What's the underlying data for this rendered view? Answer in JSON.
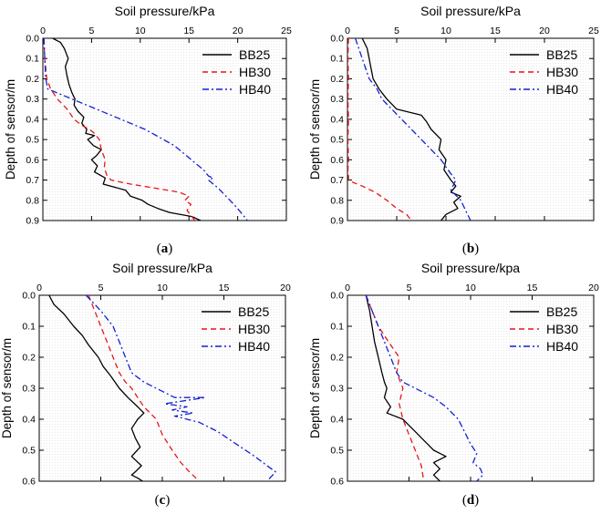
{
  "colors": {
    "BB25": "#000000",
    "HB30": "#e8141c",
    "HB40": "#1420d2"
  },
  "chart_data": [
    {
      "type": "line",
      "panel_label": "a",
      "title": "",
      "xlabel": "Soil pressure/kPa",
      "ylabel": "Depth of sensor/m",
      "xlim": [
        0,
        25
      ],
      "ylim": [
        0,
        0.9
      ],
      "x_ticks": [
        "0",
        "5",
        "10",
        "15",
        "20",
        "25"
      ],
      "y_ticks": [
        "0.0",
        "0.1",
        "0.2",
        "0.3",
        "0.4",
        "0.5",
        "0.6",
        "0.7",
        "0.8",
        "0.9"
      ],
      "legend_position": "top-right",
      "series": [
        {
          "name": "BB25",
          "style": "solid",
          "x": [
            1.0,
            1.8,
            2.2,
            2.6,
            2.3,
            2.5,
            2.7,
            3.0,
            3.3,
            3.2,
            3.6,
            4.2,
            4.0,
            4.5,
            4.4,
            5.3,
            4.6,
            5.2,
            6.0,
            5.5,
            5.0,
            5.6,
            5.3,
            6.4,
            6.2,
            8.5,
            9.0,
            10.2,
            10.8,
            11.8,
            13.0,
            15.3,
            16.2
          ],
          "y": [
            0.0,
            0.02,
            0.05,
            0.1,
            0.14,
            0.19,
            0.23,
            0.27,
            0.3,
            0.33,
            0.36,
            0.39,
            0.42,
            0.45,
            0.47,
            0.48,
            0.5,
            0.53,
            0.55,
            0.58,
            0.6,
            0.63,
            0.66,
            0.69,
            0.72,
            0.75,
            0.78,
            0.8,
            0.82,
            0.84,
            0.86,
            0.88,
            0.9
          ]
        },
        {
          "name": "HB30",
          "style": "dashed",
          "x": [
            0.1,
            0.2,
            0.4,
            0.8,
            1.5,
            2.5,
            3.2,
            4.0,
            4.8,
            5.3,
            5.8,
            6.0,
            6.4,
            6.3,
            6.6,
            7.0,
            9.0,
            11.5,
            14.0,
            15.0,
            14.6,
            15.2,
            14.8,
            15.3,
            15.6
          ],
          "y": [
            0.0,
            0.1,
            0.2,
            0.25,
            0.3,
            0.35,
            0.4,
            0.43,
            0.45,
            0.47,
            0.5,
            0.55,
            0.6,
            0.64,
            0.68,
            0.7,
            0.72,
            0.74,
            0.76,
            0.78,
            0.8,
            0.82,
            0.85,
            0.88,
            0.9
          ]
        },
        {
          "name": "HB40",
          "style": "dash-dot",
          "x": [
            0.1,
            0.2,
            0.3,
            0.5,
            1.5,
            3.0,
            4.5,
            6.5,
            8.5,
            10.5,
            12.0,
            13.5,
            14.5,
            15.5,
            16.5,
            17.0,
            17.5,
            17.0,
            18.0,
            18.8,
            19.8,
            20.5,
            21.0
          ],
          "y": [
            0.0,
            0.1,
            0.2,
            0.25,
            0.27,
            0.3,
            0.33,
            0.37,
            0.41,
            0.45,
            0.49,
            0.53,
            0.57,
            0.61,
            0.65,
            0.68,
            0.69,
            0.7,
            0.74,
            0.78,
            0.83,
            0.87,
            0.9
          ]
        }
      ]
    },
    {
      "type": "line",
      "panel_label": "b",
      "title": "",
      "xlabel": "Soil pressure/kPa",
      "ylabel": "Depth of sensor/m",
      "xlim": [
        0,
        25
      ],
      "ylim": [
        0,
        0.9
      ],
      "x_ticks": [
        "0",
        "5",
        "10",
        "15",
        "20",
        "25"
      ],
      "y_ticks": [
        "0.0",
        "0.1",
        "0.2",
        "0.3",
        "0.4",
        "0.5",
        "0.6",
        "0.7",
        "0.8",
        "0.9"
      ],
      "legend_position": "top-right",
      "series": [
        {
          "name": "BB25",
          "style": "solid",
          "x": [
            1.5,
            2.0,
            2.2,
            2.4,
            2.6,
            3.2,
            4.0,
            5.0,
            7.5,
            8.0,
            8.5,
            9.5,
            9.3,
            10.0,
            9.8,
            10.5,
            11.0,
            10.5,
            11.5,
            10.8,
            11.2,
            10.0,
            9.5
          ],
          "y": [
            0.0,
            0.05,
            0.1,
            0.15,
            0.2,
            0.25,
            0.3,
            0.35,
            0.38,
            0.41,
            0.45,
            0.5,
            0.55,
            0.6,
            0.65,
            0.7,
            0.73,
            0.76,
            0.78,
            0.81,
            0.84,
            0.87,
            0.9
          ]
        },
        {
          "name": "HB30",
          "style": "dashed",
          "x": [
            0.1,
            0.05,
            0.1,
            0.05,
            0.1,
            0.05,
            0.1,
            0.05,
            0.1,
            0.1,
            0.5,
            1.5,
            2.8,
            4.0,
            5.0,
            6.0,
            6.5
          ],
          "y": [
            0.0,
            0.1,
            0.2,
            0.3,
            0.4,
            0.5,
            0.6,
            0.65,
            0.68,
            0.7,
            0.71,
            0.73,
            0.76,
            0.8,
            0.84,
            0.87,
            0.9
          ]
        },
        {
          "name": "HB40",
          "style": "dash-dot",
          "x": [
            0.8,
            1.5,
            2.2,
            3.0,
            3.5,
            4.5,
            5.5,
            6.5,
            7.5,
            8.5,
            9.5,
            10.2,
            11.0,
            10.5,
            11.5,
            12.0,
            12.5
          ],
          "y": [
            0.0,
            0.1,
            0.2,
            0.25,
            0.3,
            0.35,
            0.4,
            0.45,
            0.5,
            0.55,
            0.6,
            0.65,
            0.7,
            0.75,
            0.8,
            0.85,
            0.9
          ]
        }
      ]
    },
    {
      "type": "line",
      "panel_label": "c",
      "title": "",
      "xlabel": "Soil pressure/kPa",
      "ylabel": "Depth of sensor/m",
      "xlim": [
        0,
        20
      ],
      "ylim": [
        0,
        0.6
      ],
      "x_ticks": [
        "0",
        "5",
        "10",
        "15",
        "20"
      ],
      "y_ticks": [
        "0.0",
        "0.1",
        "0.2",
        "0.3",
        "0.4",
        "0.5",
        "0.6"
      ],
      "legend_position": "top-right",
      "series": [
        {
          "name": "BB25",
          "style": "solid",
          "x": [
            0.8,
            1.2,
            2.0,
            2.8,
            3.5,
            4.0,
            4.8,
            5.2,
            5.8,
            6.5,
            7.2,
            8.0,
            8.5,
            8.0,
            7.5,
            7.8,
            8.2,
            7.5,
            8.3,
            7.8,
            7.5,
            8.0,
            8.4
          ],
          "y": [
            0.0,
            0.03,
            0.06,
            0.1,
            0.13,
            0.16,
            0.2,
            0.23,
            0.26,
            0.3,
            0.33,
            0.36,
            0.38,
            0.4,
            0.43,
            0.46,
            0.49,
            0.52,
            0.55,
            0.57,
            0.58,
            0.59,
            0.6
          ]
        },
        {
          "name": "HB30",
          "style": "dashed",
          "x": [
            4.0,
            4.5,
            5.0,
            5.5,
            6.0,
            6.5,
            7.0,
            7.5,
            8.0,
            8.5,
            9.5,
            10.0,
            10.8,
            11.5,
            12.2,
            13.0
          ],
          "y": [
            0.0,
            0.05,
            0.1,
            0.15,
            0.2,
            0.25,
            0.28,
            0.3,
            0.33,
            0.36,
            0.4,
            0.45,
            0.5,
            0.54,
            0.57,
            0.6
          ]
        },
        {
          "name": "HB40",
          "style": "dash-dot",
          "x": [
            3.8,
            5.0,
            6.0,
            6.5,
            7.0,
            7.5,
            8.5,
            9.5,
            10.5,
            11.0,
            13.5,
            10.2,
            12.0,
            10.8,
            12.5,
            11.0,
            13.0,
            14.5,
            16.0,
            17.5,
            18.5,
            19.2,
            18.5
          ],
          "y": [
            0.0,
            0.05,
            0.1,
            0.15,
            0.2,
            0.25,
            0.28,
            0.3,
            0.32,
            0.33,
            0.33,
            0.35,
            0.36,
            0.37,
            0.38,
            0.39,
            0.41,
            0.44,
            0.48,
            0.52,
            0.55,
            0.57,
            0.6
          ]
        }
      ]
    },
    {
      "type": "line",
      "panel_label": "d",
      "title": "",
      "xlabel": "Soil pressure/kpa",
      "ylabel": "Depth of sensor/m",
      "xlim": [
        0,
        20
      ],
      "ylim": [
        0,
        0.6
      ],
      "x_ticks": [
        "0",
        "5",
        "10",
        "15",
        "20"
      ],
      "y_ticks": [
        "0.0",
        "0.1",
        "0.2",
        "0.3",
        "0.4",
        "0.5",
        "0.6"
      ],
      "legend_position": "top-right",
      "series": [
        {
          "name": "BB25",
          "style": "solid",
          "x": [
            1.5,
            1.8,
            2.0,
            2.2,
            2.5,
            2.8,
            3.0,
            3.2,
            3.0,
            3.5,
            3.2,
            4.5,
            5.0,
            5.5,
            6.0,
            6.5,
            7.0,
            7.5,
            8.0,
            7.0,
            7.5,
            7.0,
            7.5
          ],
          "y": [
            0.0,
            0.05,
            0.1,
            0.15,
            0.2,
            0.25,
            0.28,
            0.3,
            0.33,
            0.36,
            0.38,
            0.4,
            0.42,
            0.44,
            0.46,
            0.48,
            0.5,
            0.51,
            0.52,
            0.54,
            0.56,
            0.58,
            0.6
          ]
        },
        {
          "name": "HB30",
          "style": "dashed",
          "x": [
            1.5,
            2.0,
            2.5,
            3.0,
            3.5,
            4.2,
            4.0,
            4.5,
            4.2,
            4.5,
            5.0,
            5.5,
            6.0,
            6.2
          ],
          "y": [
            0.0,
            0.05,
            0.1,
            0.13,
            0.16,
            0.2,
            0.25,
            0.3,
            0.35,
            0.4,
            0.45,
            0.5,
            0.55,
            0.6
          ]
        },
        {
          "name": "HB40",
          "style": "dash-dot",
          "x": [
            1.5,
            2.0,
            2.5,
            3.0,
            3.5,
            4.0,
            4.5,
            5.5,
            7.0,
            8.0,
            9.0,
            9.5,
            10.0,
            10.5,
            10.2,
            10.8,
            11.0,
            10.5
          ],
          "y": [
            0.0,
            0.05,
            0.1,
            0.15,
            0.2,
            0.25,
            0.28,
            0.3,
            0.33,
            0.36,
            0.4,
            0.44,
            0.48,
            0.51,
            0.54,
            0.56,
            0.58,
            0.6
          ]
        }
      ]
    }
  ]
}
